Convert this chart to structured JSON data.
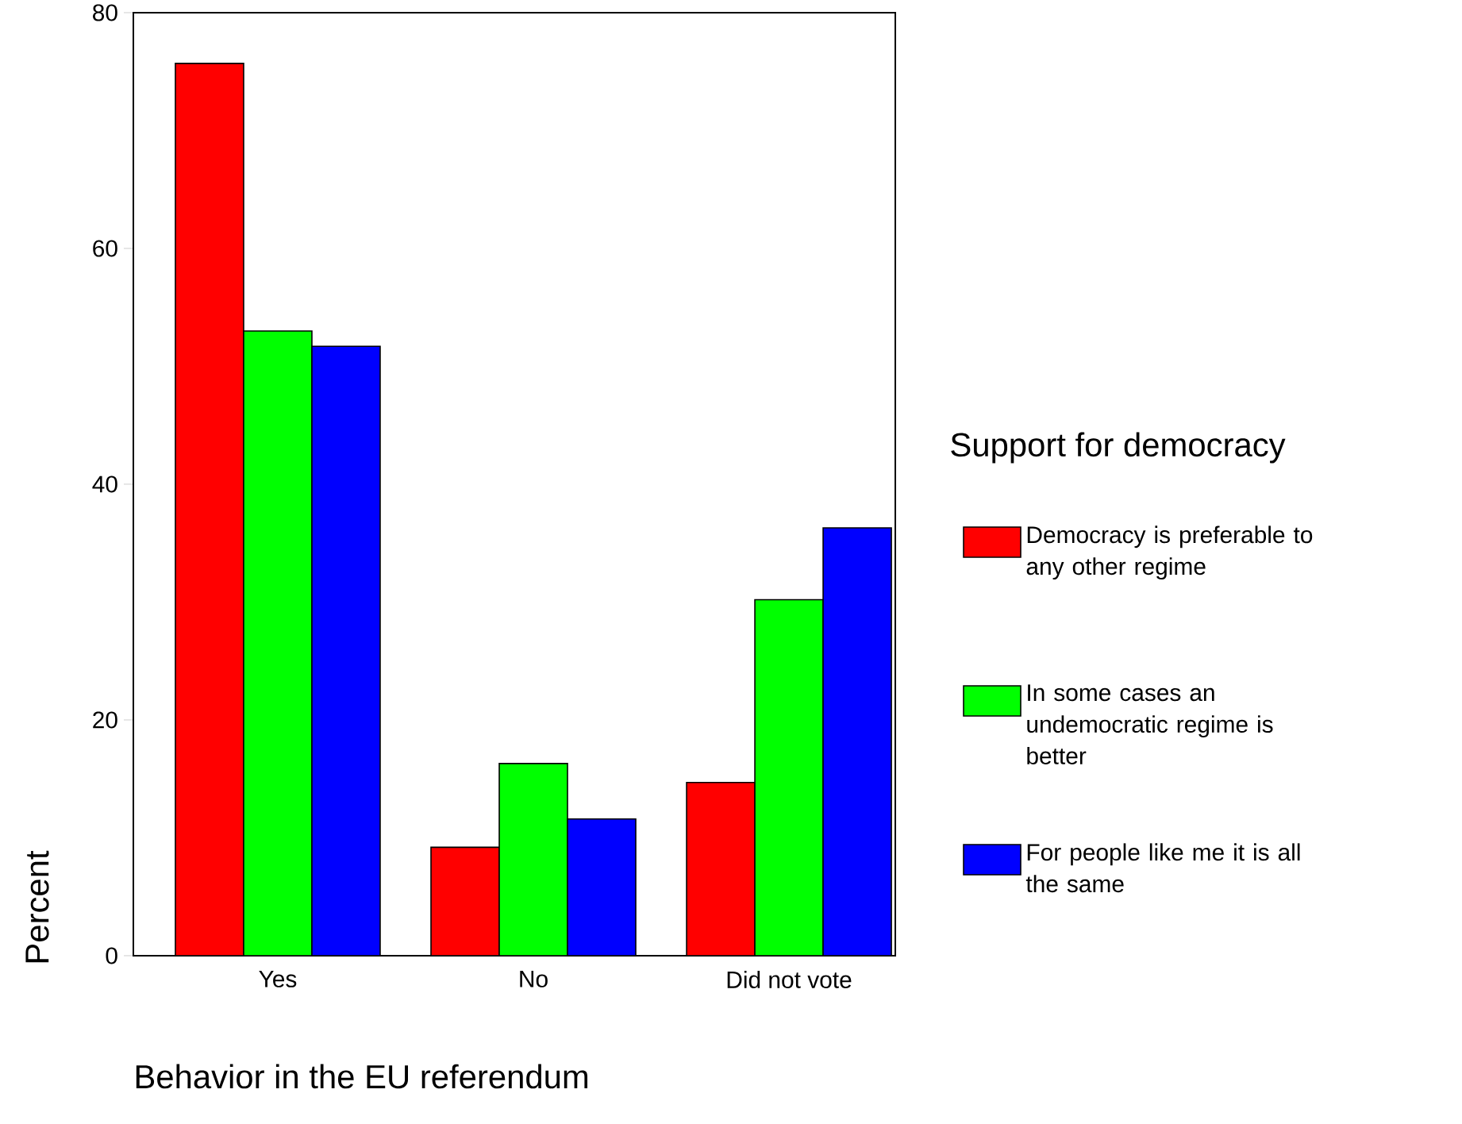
{
  "chart_data": {
    "type": "bar",
    "xlabel": "Behavior in the EU referendum",
    "ylabel": "Percent",
    "legend_title": "Support for democracy",
    "categories": [
      "Yes",
      "No",
      "Did not vote"
    ],
    "series": [
      {
        "name": "Democracy is preferable to any other regime",
        "color": "#ff0000",
        "values": [
          75.7,
          9.2,
          14.7
        ]
      },
      {
        "name": "In some cases an undemocratic regime is better",
        "color": "#00ff00",
        "values": [
          53.0,
          16.3,
          30.2
        ]
      },
      {
        "name": "For people like me it is all the same",
        "color": "#0000ff",
        "values": [
          51.7,
          11.6,
          36.3
        ]
      }
    ],
    "ylim": [
      0,
      80
    ],
    "yticks": [
      0,
      20,
      40,
      60,
      80
    ],
    "grid": false,
    "legend": "right"
  }
}
